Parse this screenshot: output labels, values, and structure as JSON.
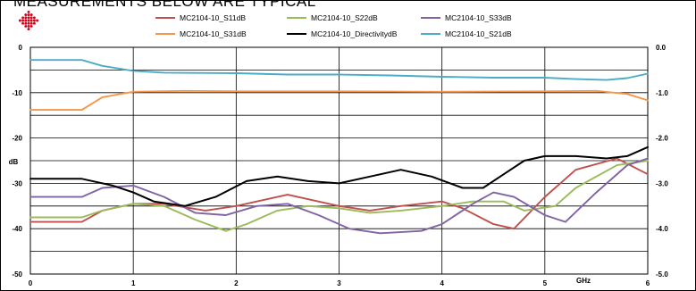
{
  "heading": "MEASUREMENTS BELOW ARE TYPICAL",
  "colors": {
    "s11": "#c0504d",
    "s22": "#9bbb59",
    "s33": "#8064a2",
    "s31": "#f79646",
    "directivity": "#000000",
    "s21": "#4bacc6",
    "logo": "#d6001c"
  },
  "logo_icon": "diamond-dot-logo",
  "chart_data": {
    "type": "line",
    "xlabel": "GHz",
    "ylabel": "dB",
    "xlim": [
      0,
      6
    ],
    "ylim_left": [
      -50,
      0
    ],
    "ylim_right": [
      -5.0,
      0.0
    ],
    "x_ticks": [
      "0",
      "1",
      "2",
      "3",
      "4",
      "5",
      "6"
    ],
    "y_ticks_left": [
      "0",
      "-10",
      "-20",
      "-30",
      "-40",
      "-50"
    ],
    "y_ticks_right": [
      "0.0",
      "-1.0",
      "-2.0",
      "-3.0",
      "-4.0",
      "-5.0"
    ],
    "legend_position": "top",
    "grid": true,
    "series": [
      {
        "name": "MC2104-10_S11dB",
        "color_key": "s11",
        "axis": "left",
        "x": [
          0,
          0.5,
          0.7,
          1.0,
          1.3,
          1.7,
          2.0,
          2.5,
          3.0,
          3.3,
          3.6,
          4.0,
          4.2,
          4.5,
          4.7,
          5.0,
          5.3,
          5.7,
          6.0
        ],
        "y": [
          -38.5,
          -38.5,
          -36,
          -34.5,
          -34.5,
          -36,
          -35,
          -32.5,
          -35,
          -36,
          -35,
          -34,
          -35.5,
          -39,
          -40,
          -33,
          -27,
          -24.5,
          -28
        ]
      },
      {
        "name": "MC2104-10_S22dB",
        "color_key": "s22",
        "axis": "left",
        "x": [
          0,
          0.5,
          0.7,
          1.0,
          1.3,
          1.6,
          1.9,
          2.1,
          2.4,
          2.7,
          3.0,
          3.3,
          3.6,
          4.0,
          4.3,
          4.6,
          4.8,
          5.1,
          5.3,
          5.7,
          6.0
        ],
        "y": [
          -37.5,
          -37.5,
          -36,
          -34.5,
          -35,
          -38,
          -40.5,
          -39,
          -36,
          -35,
          -35.5,
          -36.5,
          -36,
          -35,
          -34,
          -34,
          -36,
          -35,
          -31,
          -26,
          -25
        ]
      },
      {
        "name": "MC2104-10_S33dB",
        "color_key": "s33",
        "axis": "left",
        "x": [
          0,
          0.5,
          0.7,
          1.0,
          1.3,
          1.6,
          1.9,
          2.2,
          2.5,
          2.8,
          3.1,
          3.4,
          3.8,
          4.0,
          4.3,
          4.5,
          4.7,
          5.0,
          5.2,
          5.5,
          5.8,
          6.0
        ],
        "y": [
          -33,
          -33,
          -31,
          -30.5,
          -33,
          -36.5,
          -37,
          -35,
          -34.5,
          -37,
          -40,
          -41,
          -40.5,
          -39,
          -34.5,
          -32,
          -33,
          -37,
          -38.5,
          -32,
          -26,
          -24.5
        ]
      },
      {
        "name": "MC2104-10_S31dB",
        "color_key": "s31",
        "axis": "right",
        "x": [
          0,
          0.5,
          0.7,
          1.0,
          1.5,
          2.0,
          3.0,
          4.0,
          5.0,
          5.5,
          5.8,
          6.0
        ],
        "y": [
          -1.38,
          -1.38,
          -1.1,
          -0.98,
          -0.96,
          -0.97,
          -0.97,
          -0.98,
          -0.97,
          -0.96,
          -1.03,
          -1.17
        ]
      },
      {
        "name": "MC2104-10_DirectivitydB",
        "color_key": "directivity",
        "axis": "left",
        "x": [
          0,
          0.5,
          0.8,
          1.0,
          1.2,
          1.5,
          1.8,
          2.1,
          2.4,
          2.7,
          3.0,
          3.3,
          3.6,
          3.9,
          4.2,
          4.4,
          4.6,
          4.8,
          5.0,
          5.3,
          5.6,
          5.8,
          6.0
        ],
        "y": [
          -29,
          -29,
          -30.5,
          -32,
          -34,
          -35,
          -33,
          -29.5,
          -28.5,
          -29.5,
          -30,
          -28.5,
          -27,
          -28.5,
          -31,
          -31,
          -28,
          -25,
          -24,
          -24,
          -24.5,
          -24,
          -22
        ]
      },
      {
        "name": "MC2104-10_S21dB",
        "color_key": "s21",
        "axis": "right",
        "x": [
          0,
          0.5,
          0.7,
          1.0,
          1.3,
          2.0,
          2.5,
          3.0,
          3.5,
          4.0,
          4.5,
          5.0,
          5.3,
          5.6,
          5.8,
          6.0
        ],
        "y": [
          -0.28,
          -0.28,
          -0.41,
          -0.52,
          -0.56,
          -0.57,
          -0.6,
          -0.6,
          -0.62,
          -0.65,
          -0.67,
          -0.67,
          -0.7,
          -0.72,
          -0.68,
          -0.58
        ]
      }
    ]
  }
}
